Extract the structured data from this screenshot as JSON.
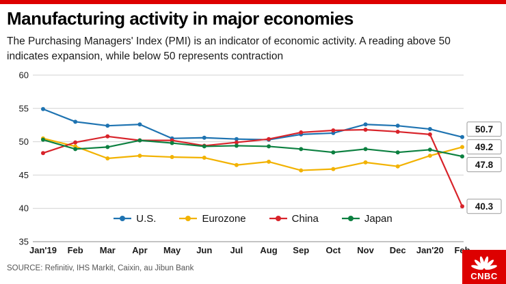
{
  "header": {
    "title": "Manufacturing activity in major economies",
    "subtitle": "The Purchasing Managers' Index (PMI) is an indicator of economic activity. A reading above 50 indicates expansion, while below 50 represents contraction"
  },
  "chart_data": {
    "type": "line",
    "categories": [
      "Jan'19",
      "Feb",
      "Mar",
      "Apr",
      "May",
      "Jun",
      "Jul",
      "Aug",
      "Sep",
      "Oct",
      "Nov",
      "Dec",
      "Jan'20",
      "Feb"
    ],
    "series": [
      {
        "name": "U.S.",
        "color": "#1e73b1",
        "values": [
          54.9,
          53.0,
          52.4,
          52.6,
          50.5,
          50.6,
          50.4,
          50.3,
          51.1,
          51.3,
          52.6,
          52.4,
          51.9,
          50.7
        ]
      },
      {
        "name": "Eurozone",
        "color": "#f2b200",
        "values": [
          50.5,
          49.3,
          47.5,
          47.9,
          47.7,
          47.6,
          46.5,
          47.0,
          45.7,
          45.9,
          46.9,
          46.3,
          47.9,
          49.2
        ]
      },
      {
        "name": "China",
        "color": "#d8232a",
        "values": [
          48.3,
          49.9,
          50.8,
          50.2,
          50.2,
          49.4,
          49.9,
          50.4,
          51.4,
          51.7,
          51.8,
          51.5,
          51.1,
          40.3
        ]
      },
      {
        "name": "Japan",
        "color": "#0c8040",
        "values": [
          50.3,
          48.9,
          49.2,
          50.2,
          49.8,
          49.3,
          49.4,
          49.3,
          48.9,
          48.4,
          48.9,
          48.4,
          48.8,
          47.8
        ]
      }
    ],
    "title": "Manufacturing activity in major economies",
    "xlabel": "",
    "ylabel": "",
    "ylim": [
      35,
      60
    ],
    "yticks": [
      35,
      40,
      45,
      50,
      55,
      60
    ],
    "grid": true,
    "legend_position": "bottom-center",
    "end_labels": [
      {
        "series": "U.S.",
        "value": "50.7"
      },
      {
        "series": "Eurozone",
        "value": "49.2"
      },
      {
        "series": "Japan",
        "value": "47.8"
      },
      {
        "series": "China",
        "value": "40.3"
      }
    ]
  },
  "footer": {
    "source": "SOURCE: Refinitiv, IHS Markit, Caixin, au Jibun Bank",
    "logo_text": "CNBC"
  },
  "colors": {
    "accent_bar": "#dd0000",
    "logo_bg": "#dd0000",
    "gridline": "#d2d2d2",
    "axis_line": "#8a8a8a",
    "tick_text": "#1a1a1a"
  }
}
